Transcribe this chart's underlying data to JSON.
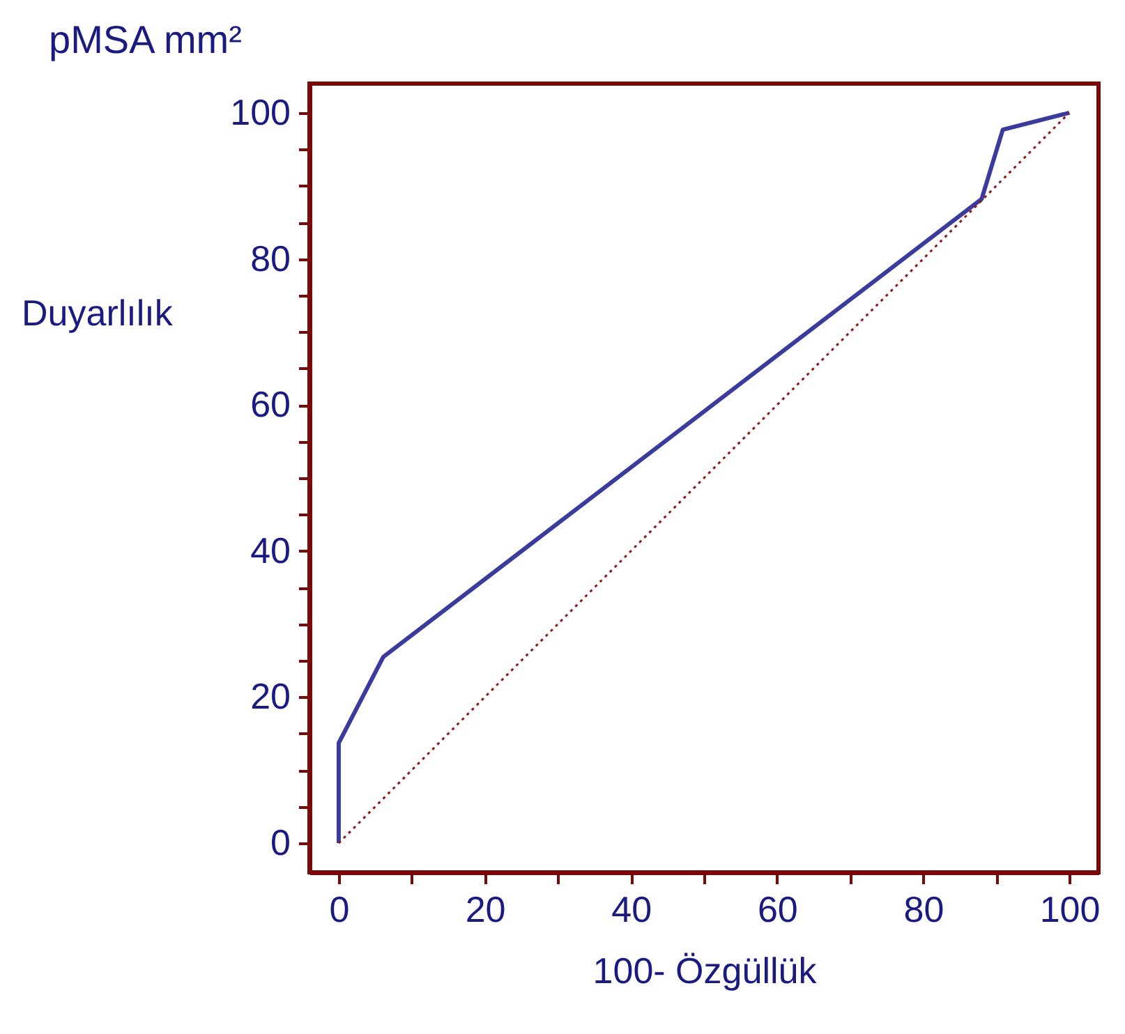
{
  "chart_data": {
    "type": "line",
    "title": "pMSA  mm²",
    "xlabel": "100- Özgüllük",
    "ylabel": "Duyarlılık",
    "x": [
      0,
      0,
      6.1,
      88,
      90.9,
      100
    ],
    "series": [
      {
        "color": "#3b3b9e",
        "values": [
          0,
          13.7,
          25.5,
          88.2,
          97.7,
          100
        ],
        "line_style": "solid"
      },
      {
        "type": "line",
        "x": [
          0,
          100
        ],
        "color": "#8b1a1a",
        "values": [
          0,
          100
        ],
        "line_style": "dotted"
      }
    ],
    "xlim": [
      -4,
      104
    ],
    "ylim": [
      -4,
      104
    ],
    "xticks": [
      0,
      {
        "value": 10,
        "label": null
      },
      20,
      {
        "value": 30,
        "label": null
      },
      40,
      {
        "value": 50,
        "label": null
      },
      60,
      {
        "value": 70,
        "label": null
      },
      80,
      {
        "value": 90,
        "label": null
      },
      100
    ],
    "yticks": [
      0,
      {
        "value": 5,
        "label": null
      },
      {
        "value": 10,
        "label": null
      },
      {
        "value": 15,
        "label": null
      },
      20,
      {
        "value": 25,
        "label": null
      },
      {
        "value": 30,
        "label": null
      },
      {
        "value": 35,
        "label": null
      },
      40,
      {
        "value": 45,
        "label": null
      },
      {
        "value": 50,
        "label": null
      },
      {
        "value": 55,
        "label": null
      },
      60,
      {
        "value": 65,
        "label": null
      },
      {
        "value": 70,
        "label": null
      },
      {
        "value": 75,
        "label": null
      },
      80,
      {
        "value": 85,
        "label": null
      },
      {
        "value": 90,
        "label": null
      },
      {
        "value": 95,
        "label": null
      },
      100
    ],
    "grid": false,
    "marker": "none"
  }
}
